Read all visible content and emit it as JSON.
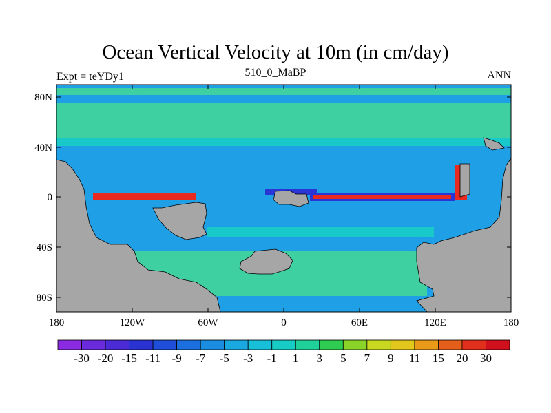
{
  "header": {
    "title": "Ocean Vertical Velocity at 10m (in cm/day)",
    "left": "Expt = teYDy1",
    "center": "510_0_MaBP",
    "right": "ANN"
  },
  "map": {
    "x_ticks": [
      "180",
      "120W",
      "60W",
      "0",
      "60E",
      "120E",
      "180"
    ],
    "y_ticks": [
      "80N",
      "40N",
      "0",
      "40S",
      "80S"
    ],
    "ocean_colors": {
      "background": "#1fa0e6",
      "green": "#3ed0a0",
      "light_green": "#19c8c8",
      "strong_down": "#2a35d6",
      "strong_up": "#e82a20",
      "land": "#a6a6a6"
    }
  },
  "colorbar": {
    "labels": [
      "-30",
      "-20",
      "-15",
      "-11",
      "-9",
      "-7",
      "-5",
      "-3",
      "-1",
      "1",
      "3",
      "5",
      "7",
      "9",
      "11",
      "15",
      "20",
      "30"
    ],
    "colors": [
      "#8a2be2",
      "#6a2bdc",
      "#4b2bd6",
      "#2b32d2",
      "#1f4fd8",
      "#1b6fde",
      "#1b8de0",
      "#1aa8e0",
      "#18bfd8",
      "#18ccc6",
      "#20d09a",
      "#2ecc50",
      "#8ad42a",
      "#c8d820",
      "#e2c81c",
      "#e89a18",
      "#e4601a",
      "#e0301c",
      "#d0101c"
    ]
  }
}
